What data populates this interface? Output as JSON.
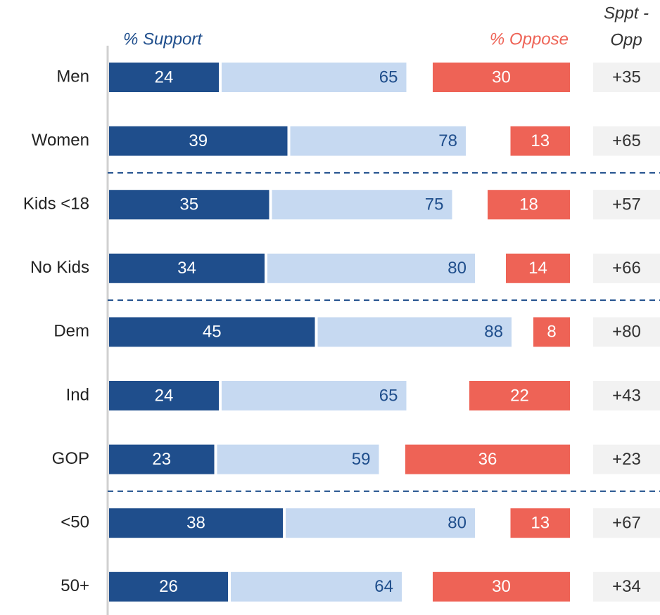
{
  "chart_data": {
    "type": "bar",
    "categories": [
      "Men",
      "Women",
      "Kids <18",
      "No Kids",
      "Dem",
      "Ind",
      "GOP",
      "<50",
      "50+"
    ],
    "strong_values": [
      24,
      39,
      35,
      34,
      45,
      24,
      23,
      38,
      26
    ],
    "strong_color": "#1f4e8c",
    "series": [
      {
        "name": "% Support",
        "color": "#c6d9f1",
        "values": [
          65,
          78,
          75,
          80,
          88,
          65,
          59,
          80,
          64
        ]
      },
      {
        "name": "% Oppose",
        "color": "#ee6356",
        "values": [
          30,
          13,
          18,
          14,
          8,
          22,
          36,
          13,
          30
        ]
      }
    ],
    "net_title": [
      "Sppt -",
      "Opp"
    ],
    "net_values": [
      35,
      65,
      57,
      66,
      80,
      43,
      23,
      67,
      34
    ],
    "net_value_labels": [
      "+35",
      "+65",
      "+57",
      "+66",
      "+80",
      "+43",
      "+23",
      "+67",
      "+34"
    ],
    "separators_after": [
      1,
      3,
      6
    ]
  }
}
